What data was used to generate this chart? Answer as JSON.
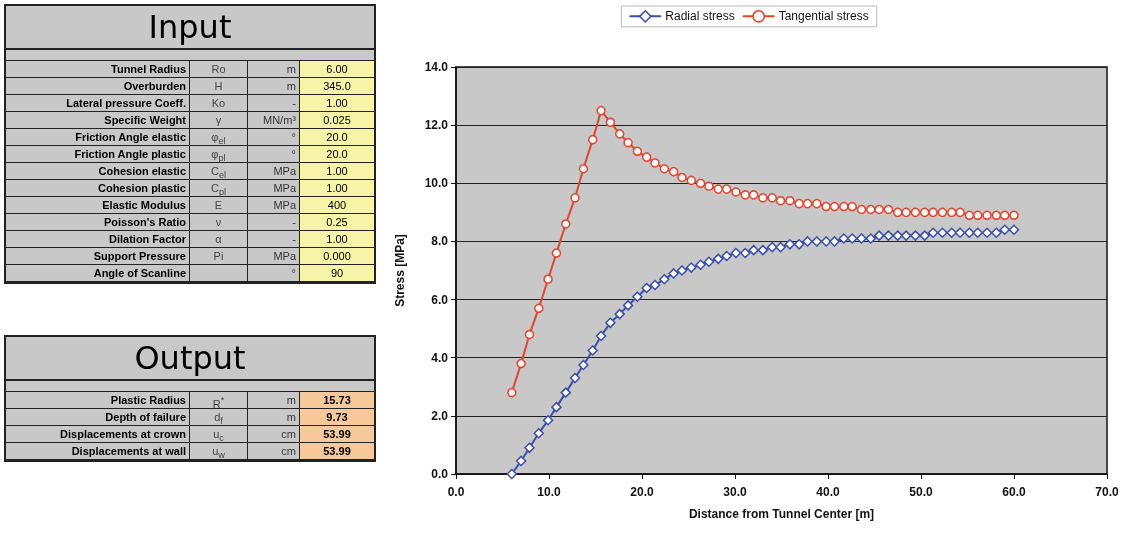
{
  "chart_data": [
    {
      "type": "other",
      "title": "Input",
      "annotations": [
        "Tunnel Radius",
        "Ro",
        "m",
        "6.00",
        "Overburden",
        "H",
        "m",
        "345.0",
        "Lateral pressure Coeff.",
        "Ko",
        "-",
        "1.00",
        "Specific Weight",
        "γ",
        "MN/m³",
        "0.025",
        "Friction Angle elastic",
        "φ$_{el}$",
        "°",
        "20.0",
        "Friction Angle plastic",
        "φ$_{pl}$",
        "°",
        "20.0",
        "Cohesion elastic",
        "C$_{el}$",
        "MPa",
        "1.00",
        "Cohesion plastic",
        "C$_{pl}$",
        "MPa",
        "1.00",
        "Elastic Modulus",
        "E",
        "MPa",
        "400",
        "Poisson's Ratio",
        "ν",
        "-",
        "0.25",
        "Dilation Factor",
        "α",
        "-",
        "1.00",
        "Support Pressure",
        "Pi",
        "MPa",
        "0.000",
        "Angle of Scanline",
        null,
        "°",
        "90"
      ],
      "color": "#f7f3a8"
    },
    {
      "type": "other",
      "title": "Output",
      "annotations": [
        "Plastic Radius",
        "R$^{*}$",
        "m",
        "15.73",
        "Depth of failure",
        "d$_{f}$",
        "m",
        "9.73",
        "Displacements at crown",
        "u$_{c}$",
        "cm",
        "53.99",
        "Displacements at wall",
        "u$_{w}$",
        "cm",
        "53.99"
      ],
      "color": "#f7c89a"
    },
    {
      "type": "line",
      "xlabel": "Distance from Tunnel Center [m]",
      "ylabel": "Stress [MPa]",
      "xlim": [
        0,
        70
      ],
      "ylim": [
        0,
        14
      ],
      "xticks": [
        {
          "value": 0,
          "label": "0.0"
        },
        {
          "value": 10,
          "label": "10.0"
        },
        {
          "value": 20,
          "label": "20.0"
        },
        {
          "value": 30,
          "label": "30.0"
        },
        {
          "value": 40,
          "label": "40.0"
        },
        {
          "value": 50,
          "label": "50.0"
        },
        {
          "value": 60,
          "label": "60.0"
        },
        {
          "value": 70,
          "label": "70.0"
        }
      ],
      "yticks": [
        {
          "value": 0,
          "label": "0.0"
        },
        {
          "value": 2,
          "label": "2.0"
        },
        {
          "value": 4,
          "label": "4.0"
        },
        {
          "value": 6,
          "label": "6.0"
        },
        {
          "value": 8,
          "label": "8.0"
        },
        {
          "value": 10,
          "label": "10.0"
        },
        {
          "value": 12,
          "label": "12.0"
        },
        {
          "value": 14,
          "label": "14.0"
        }
      ],
      "grid": "y",
      "legend": "top",
      "line_style": "solid",
      "x": [
        6.0,
        7.0,
        7.9,
        8.9,
        9.9,
        10.8,
        11.8,
        12.8,
        13.7,
        14.7,
        15.6,
        16.6,
        17.6,
        18.5,
        19.5,
        20.5,
        21.4,
        22.4,
        23.4,
        24.3,
        25.3,
        26.3,
        27.2,
        28.2,
        29.1,
        30.1,
        31.1,
        32.0,
        33.0,
        34.0,
        34.9,
        35.9,
        36.9,
        37.8,
        38.8,
        39.8,
        40.7,
        41.7,
        42.6,
        43.6,
        44.6,
        45.5,
        46.5,
        47.5,
        48.4,
        49.4,
        50.4,
        51.3,
        52.3,
        53.3,
        54.2,
        55.2,
        56.1,
        57.1,
        58.1,
        59.0,
        60.0
      ],
      "series": [
        {
          "name": "Radial stress",
          "color": "#3b4fa6",
          "marker": "diamond",
          "values": [
            0.0,
            0.45,
            0.9,
            1.4,
            1.85,
            2.3,
            2.8,
            3.3,
            3.75,
            4.25,
            4.75,
            5.2,
            5.5,
            5.8,
            6.1,
            6.4,
            6.5,
            6.7,
            6.9,
            7.0,
            7.1,
            7.2,
            7.3,
            7.4,
            7.5,
            7.6,
            7.6,
            7.7,
            7.7,
            7.8,
            7.8,
            7.9,
            7.9,
            8.0,
            8.0,
            8.0,
            8.0,
            8.1,
            8.1,
            8.1,
            8.1,
            8.2,
            8.2,
            8.2,
            8.2,
            8.2,
            8.2,
            8.3,
            8.3,
            8.3,
            8.3,
            8.3,
            8.3,
            8.3,
            8.3,
            8.4,
            8.4
          ]
        },
        {
          "name": "Tangential stress",
          "color": "#e0452f",
          "marker": "circle",
          "values": [
            2.8,
            3.8,
            4.8,
            5.7,
            6.7,
            7.6,
            8.6,
            9.5,
            10.5,
            11.5,
            12.5,
            12.1,
            11.7,
            11.4,
            11.1,
            10.9,
            10.7,
            10.5,
            10.4,
            10.2,
            10.1,
            10.0,
            9.9,
            9.8,
            9.8,
            9.7,
            9.6,
            9.6,
            9.5,
            9.5,
            9.4,
            9.4,
            9.3,
            9.3,
            9.3,
            9.2,
            9.2,
            9.2,
            9.2,
            9.1,
            9.1,
            9.1,
            9.1,
            9.0,
            9.0,
            9.0,
            9.0,
            9.0,
            9.0,
            9.0,
            9.0,
            8.9,
            8.9,
            8.9,
            8.9,
            8.9,
            8.9
          ]
        }
      ]
    }
  ]
}
